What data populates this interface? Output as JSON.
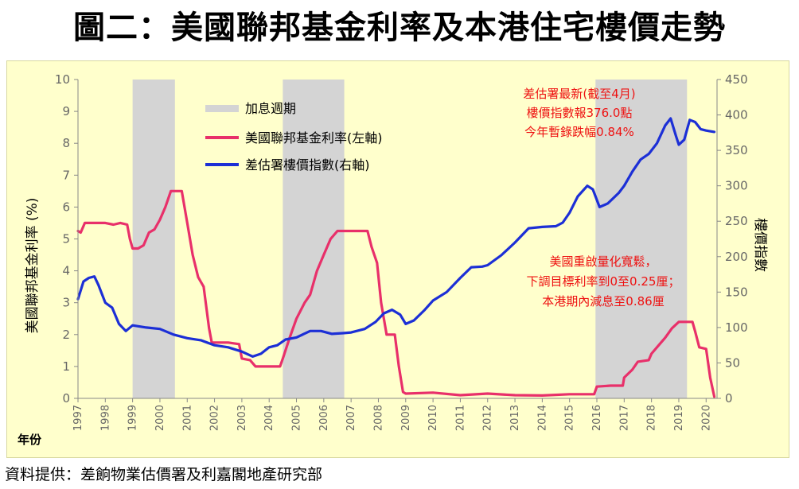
{
  "title": "圖二：美國聯邦基金利率及本港住宅樓價走勢",
  "source": "資料提供：差餉物業估價署及利嘉閣地產研究部",
  "colors": {
    "background": "#ffffcc",
    "rate": "#e8306a",
    "index": "#1c2fd6",
    "recession": "#d4d4d4",
    "annotation": "#ee1111"
  },
  "chart_data": {
    "type": "line",
    "xlabel": "年份",
    "ylabel_left": "美國聯邦基金利率 (%)",
    "ylabel_right": "樓價指數",
    "x_range": [
      1997,
      2020.4
    ],
    "ylim_left": [
      0,
      10
    ],
    "ylim_right": [
      0,
      450
    ],
    "left_ticks": [
      "0",
      "1",
      "2",
      "3",
      "4",
      "5",
      "6",
      "7",
      "8",
      "9",
      "10"
    ],
    "right_ticks": [
      "0",
      "50",
      "100",
      "150",
      "200",
      "250",
      "300",
      "350",
      "400",
      "450"
    ],
    "x_ticks": [
      "1997",
      "1998",
      "1999",
      "2000",
      "2001",
      "2002",
      "2003",
      "2004",
      "2005",
      "2006",
      "2007",
      "2008",
      "2009",
      "2010",
      "2011",
      "2012",
      "2013",
      "2014",
      "2015",
      "2016",
      "2017",
      "2018",
      "2019",
      "2020"
    ],
    "legend": {
      "position": "top-left",
      "recession_label": "加息週期",
      "rate_label": "美國聯邦基金利率(左軸)",
      "index_label": "差估署樓價指數(右軸)"
    },
    "recession_periods": [
      [
        1999.0,
        2000.55
      ],
      [
        2004.5,
        2006.75
      ],
      [
        2015.95,
        2019.3
      ]
    ],
    "series": [
      {
        "name": "美國聯邦基金利率(左軸)",
        "axis": "left",
        "points": [
          [
            1997.0,
            5.25
          ],
          [
            1997.1,
            5.2
          ],
          [
            1997.25,
            5.5
          ],
          [
            1997.5,
            5.5
          ],
          [
            1997.75,
            5.5
          ],
          [
            1998.0,
            5.5
          ],
          [
            1998.3,
            5.45
          ],
          [
            1998.55,
            5.5
          ],
          [
            1998.8,
            5.45
          ],
          [
            1998.9,
            5.0
          ],
          [
            1999.0,
            4.7
          ],
          [
            1999.2,
            4.7
          ],
          [
            1999.4,
            4.8
          ],
          [
            1999.6,
            5.2
          ],
          [
            1999.8,
            5.3
          ],
          [
            2000.0,
            5.6
          ],
          [
            2000.2,
            6.0
          ],
          [
            2000.4,
            6.5
          ],
          [
            2000.8,
            6.5
          ],
          [
            2001.0,
            5.5
          ],
          [
            2001.2,
            4.5
          ],
          [
            2001.4,
            3.8
          ],
          [
            2001.6,
            3.5
          ],
          [
            2001.8,
            2.2
          ],
          [
            2001.9,
            1.75
          ],
          [
            2002.2,
            1.75
          ],
          [
            2002.5,
            1.75
          ],
          [
            2002.9,
            1.7
          ],
          [
            2003.0,
            1.25
          ],
          [
            2003.3,
            1.2
          ],
          [
            2003.5,
            1.0
          ],
          [
            2004.0,
            1.0
          ],
          [
            2004.4,
            1.0
          ],
          [
            2004.5,
            1.25
          ],
          [
            2004.75,
            1.9
          ],
          [
            2005.0,
            2.5
          ],
          [
            2005.3,
            3.0
          ],
          [
            2005.5,
            3.25
          ],
          [
            2005.75,
            4.0
          ],
          [
            2006.0,
            4.5
          ],
          [
            2006.25,
            5.0
          ],
          [
            2006.5,
            5.25
          ],
          [
            2007.0,
            5.25
          ],
          [
            2007.6,
            5.25
          ],
          [
            2007.75,
            4.75
          ],
          [
            2007.95,
            4.25
          ],
          [
            2008.1,
            3.0
          ],
          [
            2008.3,
            2.0
          ],
          [
            2008.6,
            2.0
          ],
          [
            2008.75,
            1.0
          ],
          [
            2008.9,
            0.2
          ],
          [
            2009.0,
            0.15
          ],
          [
            2010.0,
            0.18
          ],
          [
            2011.0,
            0.1
          ],
          [
            2012.0,
            0.15
          ],
          [
            2013.0,
            0.1
          ],
          [
            2014.0,
            0.09
          ],
          [
            2015.0,
            0.13
          ],
          [
            2015.9,
            0.13
          ],
          [
            2016.0,
            0.37
          ],
          [
            2016.5,
            0.4
          ],
          [
            2016.95,
            0.4
          ],
          [
            2017.0,
            0.65
          ],
          [
            2017.3,
            0.9
          ],
          [
            2017.5,
            1.15
          ],
          [
            2017.9,
            1.2
          ],
          [
            2018.0,
            1.4
          ],
          [
            2018.3,
            1.7
          ],
          [
            2018.5,
            1.9
          ],
          [
            2018.75,
            2.2
          ],
          [
            2019.0,
            2.4
          ],
          [
            2019.5,
            2.4
          ],
          [
            2019.6,
            2.1
          ],
          [
            2019.75,
            1.6
          ],
          [
            2020.0,
            1.55
          ],
          [
            2020.15,
            0.65
          ],
          [
            2020.3,
            0.05
          ]
        ]
      },
      {
        "name": "差估署樓價指數(右軸)",
        "axis": "right",
        "points": [
          [
            1997.0,
            140
          ],
          [
            1997.2,
            165
          ],
          [
            1997.4,
            170
          ],
          [
            1997.6,
            172
          ],
          [
            1997.75,
            160
          ],
          [
            1998.0,
            135
          ],
          [
            1998.25,
            128
          ],
          [
            1998.5,
            105
          ],
          [
            1998.75,
            95
          ],
          [
            1999.0,
            103
          ],
          [
            1999.5,
            100
          ],
          [
            2000.0,
            98
          ],
          [
            2000.5,
            90
          ],
          [
            2001.0,
            85
          ],
          [
            2001.5,
            82
          ],
          [
            2002.0,
            75
          ],
          [
            2002.5,
            72
          ],
          [
            2003.0,
            66
          ],
          [
            2003.4,
            59
          ],
          [
            2003.7,
            63
          ],
          [
            2004.0,
            72
          ],
          [
            2004.3,
            75
          ],
          [
            2004.6,
            83
          ],
          [
            2005.0,
            86
          ],
          [
            2005.5,
            95
          ],
          [
            2005.9,
            95
          ],
          [
            2006.3,
            91
          ],
          [
            2006.7,
            92
          ],
          [
            2007.0,
            93
          ],
          [
            2007.5,
            98
          ],
          [
            2007.9,
            108
          ],
          [
            2008.2,
            120
          ],
          [
            2008.5,
            125
          ],
          [
            2008.8,
            118
          ],
          [
            2009.0,
            105
          ],
          [
            2009.3,
            110
          ],
          [
            2009.7,
            125
          ],
          [
            2010.0,
            138
          ],
          [
            2010.5,
            150
          ],
          [
            2011.0,
            170
          ],
          [
            2011.4,
            185
          ],
          [
            2011.8,
            186
          ],
          [
            2012.0,
            188
          ],
          [
            2012.5,
            202
          ],
          [
            2013.0,
            220
          ],
          [
            2013.5,
            240
          ],
          [
            2014.0,
            242
          ],
          [
            2014.5,
            243
          ],
          [
            2014.75,
            248
          ],
          [
            2015.0,
            262
          ],
          [
            2015.3,
            285
          ],
          [
            2015.65,
            300
          ],
          [
            2015.85,
            295
          ],
          [
            2016.1,
            270
          ],
          [
            2016.4,
            275
          ],
          [
            2016.8,
            290
          ],
          [
            2017.0,
            300
          ],
          [
            2017.3,
            320
          ],
          [
            2017.6,
            337
          ],
          [
            2017.9,
            345
          ],
          [
            2018.2,
            360
          ],
          [
            2018.5,
            385
          ],
          [
            2018.7,
            395
          ],
          [
            2018.9,
            370
          ],
          [
            2019.0,
            358
          ],
          [
            2019.2,
            365
          ],
          [
            2019.4,
            393
          ],
          [
            2019.6,
            390
          ],
          [
            2019.8,
            380
          ],
          [
            2020.0,
            378
          ],
          [
            2020.3,
            376
          ]
        ]
      }
    ],
    "annotations": [
      {
        "lines": [
          "差估署最新(截至4月)",
          "樓價指數報376.0點",
          "今年暫錄跌幅0.84%"
        ]
      },
      {
        "lines": [
          "美國重啟量化寬鬆，",
          "下調目標利率到0至0.25厘；",
          "本港期內減息至0.86厘"
        ]
      }
    ]
  }
}
